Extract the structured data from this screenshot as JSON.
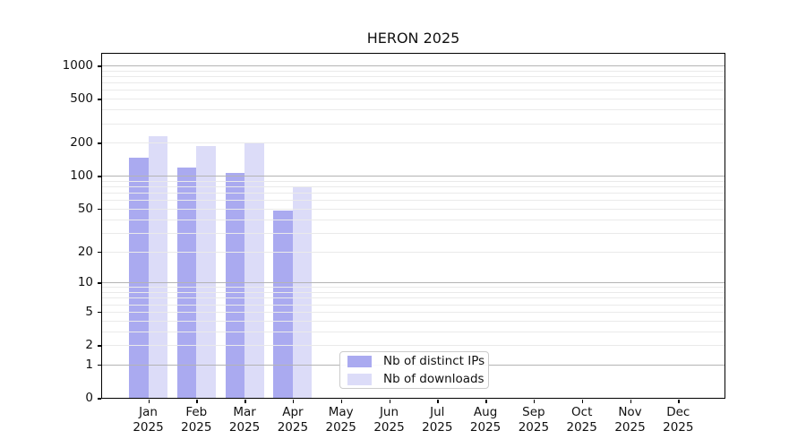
{
  "chart_data": {
    "type": "bar",
    "title": "HERON 2025",
    "year": "2025",
    "months": [
      "Jan",
      "Feb",
      "Mar",
      "Apr",
      "May",
      "Jun",
      "Jul",
      "Aug",
      "Sep",
      "Oct",
      "Nov",
      "Dec"
    ],
    "categories": [
      "Jan 2025",
      "Feb 2025",
      "Mar 2025",
      "Apr 2025",
      "May 2025",
      "Jun 2025",
      "Jul 2025",
      "Aug 2025",
      "Sep 2025",
      "Oct 2025",
      "Nov 2025",
      "Dec 2025"
    ],
    "series": [
      {
        "name": "Nb of distinct IPs",
        "color": "#aaaaf0",
        "values": [
          145,
          118,
          106,
          48,
          null,
          null,
          null,
          null,
          null,
          null,
          null,
          null
        ]
      },
      {
        "name": "Nb of downloads",
        "color": "#dcdcf8",
        "values": [
          229,
          186,
          202,
          78,
          null,
          null,
          null,
          null,
          null,
          null,
          null,
          null
        ]
      }
    ],
    "xlabel": "",
    "ylabel": "",
    "yticks": [
      0,
      1,
      2,
      5,
      10,
      20,
      50,
      100,
      200,
      500,
      1000
    ],
    "ylim": [
      0,
      1150
    ],
    "scale": "log1p",
    "grid": "on",
    "grid_major_color": "#b4b4b4",
    "grid_minor_color": "#eaeaea",
    "legend_position": "lower center",
    "axis_color": "#000000"
  }
}
